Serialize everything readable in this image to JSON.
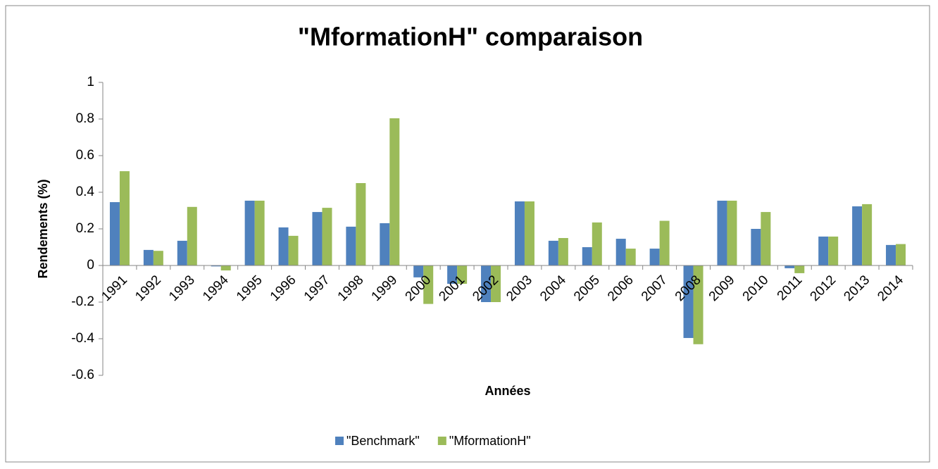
{
  "chart_data": {
    "type": "bar",
    "title": "\"MformationH\" comparaison",
    "x_label": "Années",
    "y_label": "Rendements (%)",
    "categories": [
      "1991",
      "1992",
      "1993",
      "1994",
      "1995",
      "1996",
      "1997",
      "1998",
      "1999",
      "2000",
      "2001",
      "2002",
      "2003",
      "2004",
      "2005",
      "2006",
      "2007",
      "2008",
      "2009",
      "2010",
      "2011",
      "2012",
      "2013",
      "2014"
    ],
    "series": [
      {
        "name": "\"Benchmark\"",
        "color": "#4f81bd",
        "values": [
          0.346,
          0.085,
          0.135,
          -0.005,
          0.354,
          0.208,
          0.292,
          0.212,
          0.231,
          -0.065,
          -0.1,
          -0.2,
          0.35,
          0.135,
          0.1,
          0.146,
          0.092,
          -0.396,
          0.354,
          0.2,
          -0.015,
          0.158,
          0.323,
          0.112
        ]
      },
      {
        "name": "\"MformationH\"",
        "color": "#9bbb59",
        "values": [
          0.515,
          0.08,
          0.32,
          -0.027,
          0.354,
          0.162,
          0.315,
          0.45,
          0.804,
          -0.21,
          -0.1,
          -0.2,
          0.35,
          0.15,
          0.235,
          0.092,
          0.244,
          -0.43,
          0.354,
          0.292,
          -0.042,
          0.158,
          0.335,
          0.117
        ]
      }
    ],
    "ylim": [
      -0.6,
      1
    ],
    "yticks": [
      -0.6,
      -0.4,
      -0.2,
      0,
      0.2,
      0.4,
      0.6,
      0.8,
      1
    ],
    "grid": false,
    "legend": "bottom"
  }
}
